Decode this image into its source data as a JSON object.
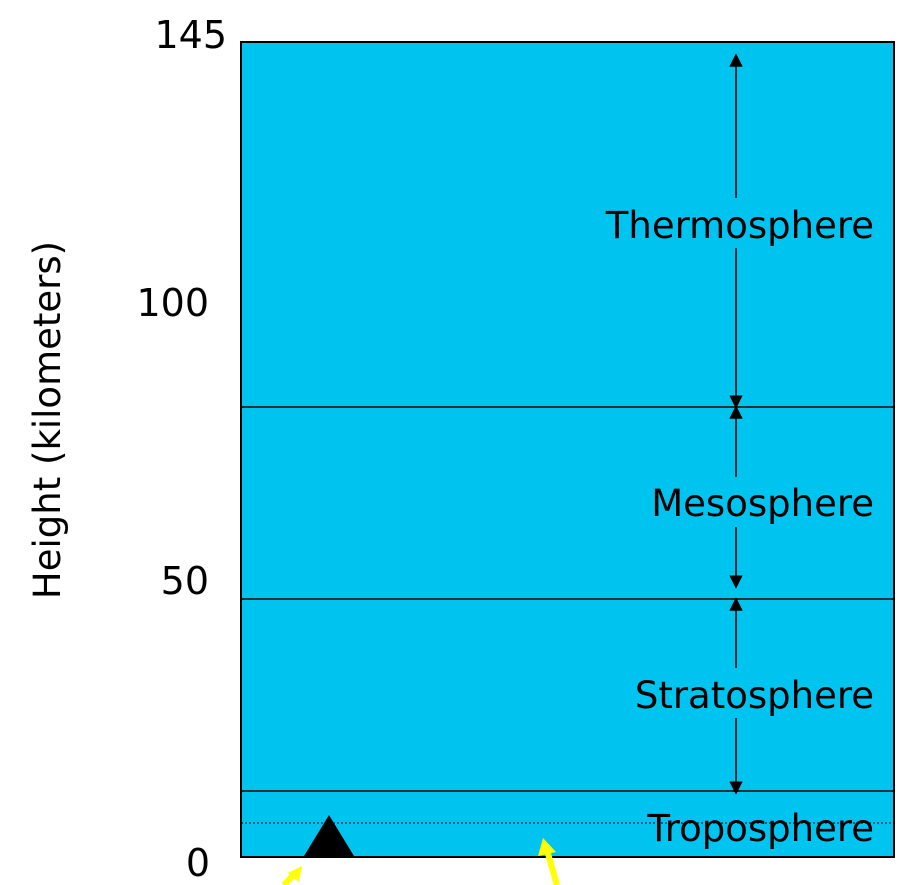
{
  "axis": {
    "label": "Height (kilometers)",
    "ticks": [
      "145",
      "100",
      "50",
      "0"
    ]
  },
  "layers": [
    {
      "id": "thermosphere",
      "label": "Thermosphere"
    },
    {
      "id": "mesosphere",
      "label": "Mesosphere"
    },
    {
      "id": "stratosphere",
      "label": "Stratosphere"
    },
    {
      "id": "troposphere",
      "label": "Troposphere"
    }
  ],
  "colors": {
    "sky": "#00c4f0",
    "lines": "#000000",
    "pointers": "#ffff00",
    "mountain": "#000000"
  },
  "icons": {
    "mountain": "filled-triangle-icon",
    "pointers": "yellow-arrow-icon"
  }
}
